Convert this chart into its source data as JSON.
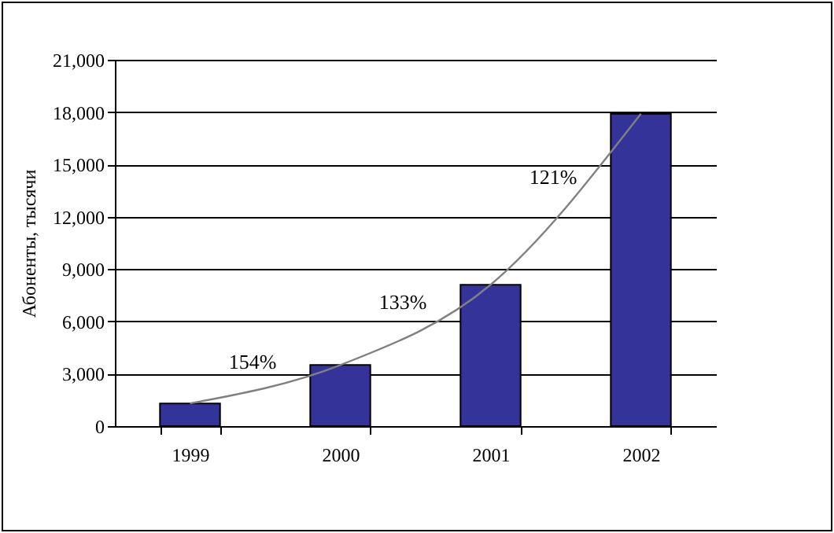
{
  "chart_data": {
    "type": "bar",
    "ylabel": "Абоненты, тысячи",
    "categories": [
      "1999",
      "2000",
      "2001",
      "2002"
    ],
    "series": [
      {
        "color": "#333399",
        "values": [
          1300,
          3500,
          8100,
          17900
        ]
      },
      {
        "type": "line",
        "color": "#808080",
        "values": [
          1300,
          3500,
          8100,
          17900
        ]
      }
    ],
    "ylim": [
      0,
      21000
    ],
    "yticks": [
      {
        "value": 0,
        "label": "0"
      },
      {
        "value": 3000,
        "label": "3,000"
      },
      {
        "value": 6000,
        "label": "6,000"
      },
      {
        "value": 9000,
        "label": "9,000"
      },
      {
        "value": 12000,
        "label": "12,000"
      },
      {
        "value": 15000,
        "label": "15,000"
      },
      {
        "value": 18000,
        "label": "18,000"
      },
      {
        "value": 21000,
        "label": "21,000"
      }
    ],
    "grid": "y",
    "marker": "none",
    "annotations": [
      "154%",
      "133%",
      "121%"
    ]
  }
}
